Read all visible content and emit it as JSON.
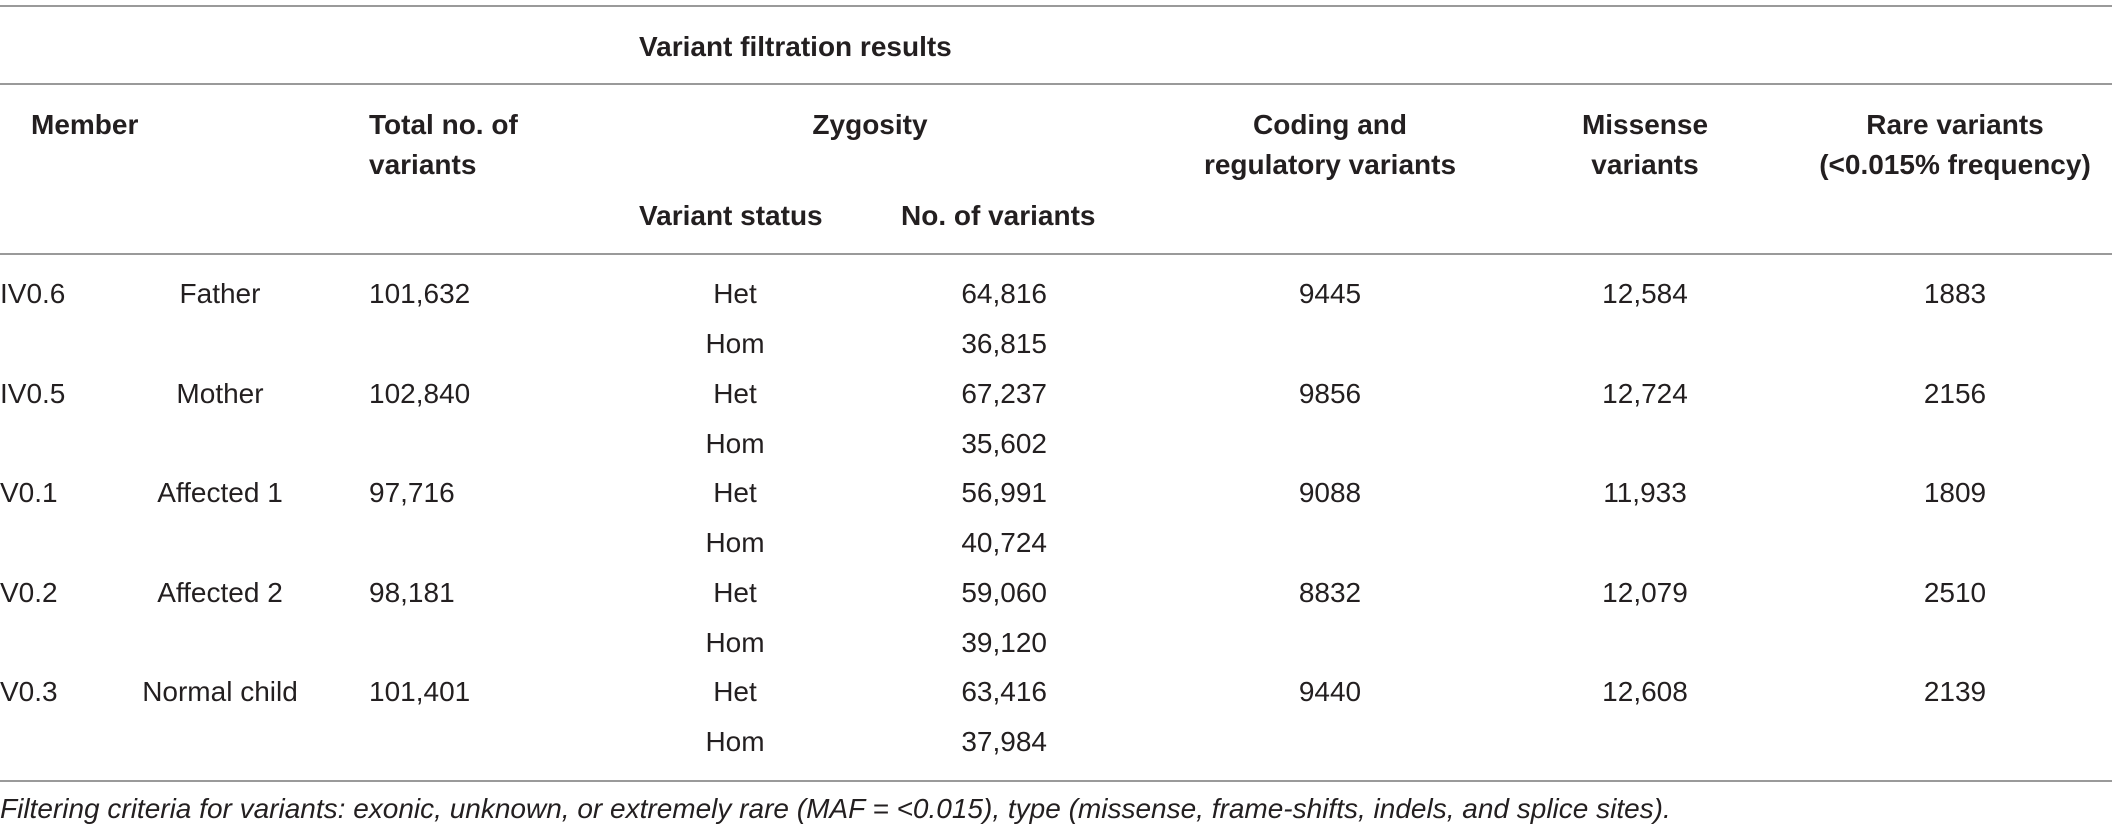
{
  "header": {
    "group_title": "Variant filtration results",
    "member": "Member",
    "total_line1": "Total no. of",
    "total_line2": "variants",
    "zygosity": "Zygosity",
    "variant_status": "Variant status",
    "no_of_variants": "No. of variants",
    "coding_line1": "Coding and",
    "coding_line2": "regulatory variants",
    "missense_line1": "Missense",
    "missense_line2": "variants",
    "rare_line1": "Rare variants",
    "rare_line2": "(<0.015% frequency)"
  },
  "rows": [
    {
      "id": "IV0.6",
      "member": "Father",
      "total": "101,632",
      "het_label": "Het",
      "het": "64,816",
      "hom_label": "Hom",
      "hom": "36,815",
      "coding": "9445",
      "missense": "12,584",
      "rare": "1883"
    },
    {
      "id": "IV0.5",
      "member": "Mother",
      "total": "102,840",
      "het_label": "Het",
      "het": "67,237",
      "hom_label": "Hom",
      "hom": "35,602",
      "coding": "9856",
      "missense": "12,724",
      "rare": "2156"
    },
    {
      "id": "V0.1",
      "member": "Affected 1",
      "total": "97,716",
      "het_label": "Het",
      "het": "56,991",
      "hom_label": "Hom",
      "hom": "40,724",
      "coding": "9088",
      "missense": "11,933",
      "rare": "1809"
    },
    {
      "id": "V0.2",
      "member": "Affected 2",
      "total": "98,181",
      "het_label": "Het",
      "het": "59,060",
      "hom_label": "Hom",
      "hom": "39,120",
      "coding": "8832",
      "missense": "12,079",
      "rare": "2510"
    },
    {
      "id": "V0.3",
      "member": "Normal child",
      "total": "101,401",
      "het_label": "Het",
      "het": "63,416",
      "hom_label": "Hom",
      "hom": "37,984",
      "coding": "9440",
      "missense": "12,608",
      "rare": "2139"
    }
  ],
  "footnote": "Filtering criteria for variants: exonic, unknown, or extremely rare (MAF = <0.015), type (missense, frame-shifts, indels, and splice sites)."
}
